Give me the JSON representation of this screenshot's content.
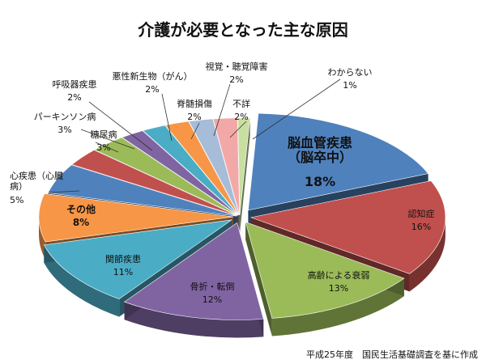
{
  "chart_data": {
    "type": "pie",
    "title": "介護が必要となった主な原因",
    "source_note": "平成25年度　国民生活基礎調査を基に作成",
    "slices": [
      {
        "label": "脳血管疾患（脳卒中）",
        "value": 18,
        "value_text": "18%",
        "color": "#4f81bd"
      },
      {
        "label": "認知症",
        "value": 16,
        "value_text": "16%",
        "color": "#c0504d"
      },
      {
        "label": "高齢による衰弱",
        "value": 13,
        "value_text": "13%",
        "color": "#9bbb59"
      },
      {
        "label": "骨折・転倒",
        "value": 12,
        "value_text": "12%",
        "color": "#8064a2"
      },
      {
        "label": "関節疾患",
        "value": 11,
        "value_text": "11%",
        "color": "#4bacc6"
      },
      {
        "label": "その他",
        "value": 8,
        "value_text": "8%",
        "color": "#f79646"
      },
      {
        "label": "心疾患（心臓病）",
        "value": 5,
        "value_text": "5%",
        "color": "#4f81bd"
      },
      {
        "label": "糖尿病",
        "value": 3,
        "value_text": "3%",
        "color": "#c0504d"
      },
      {
        "label": "パーキンソン病",
        "value": 3,
        "value_text": "3%",
        "color": "#9bbb59"
      },
      {
        "label": "呼吸器疾患",
        "value": 2,
        "value_text": "2%",
        "color": "#8064a2"
      },
      {
        "label": "悪性新生物（がん）",
        "value": 2,
        "value_text": "2%",
        "color": "#4bacc6"
      },
      {
        "label": "脊髄損傷",
        "value": 2,
        "value_text": "2%",
        "color": "#f79646"
      },
      {
        "label": "視覚・聴覚障害",
        "value": 2,
        "value_text": "2%",
        "color": "#a6bcd8"
      },
      {
        "label": "不詳",
        "value": 2,
        "value_text": "2%",
        "color": "#f2a8a6"
      },
      {
        "label": "わからない",
        "value": 1,
        "value_text": "1%",
        "color": "#c9dfa2"
      }
    ]
  }
}
